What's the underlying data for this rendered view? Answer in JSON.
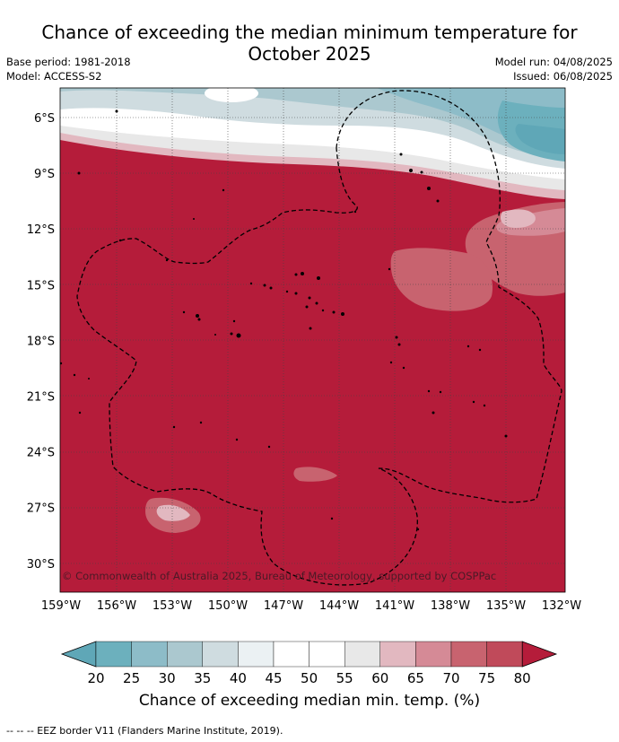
{
  "title_line1": "Chance of exceeding the median minimum temperature for",
  "title_line2": "October 2025",
  "base_period": "Base period: 1981-2018",
  "model": "Model: ACCESS-S2",
  "model_run": "Model run: 04/08/2025",
  "issued": "Issued: 06/08/2025",
  "lat_labels": [
    "6°S",
    "9°S",
    "12°S",
    "15°S",
    "18°S",
    "21°S",
    "24°S",
    "27°S",
    "30°S"
  ],
  "lon_labels": [
    "159°W",
    "156°W",
    "153°W",
    "150°W",
    "147°W",
    "144°W",
    "141°W",
    "138°W",
    "135°W",
    "132°W"
  ],
  "copyright": "© Commonwealth of Australia 2025, Bureau of Meteorology, supported by COSPPac",
  "colorbar": {
    "ticks": [
      "20",
      "25",
      "30",
      "35",
      "40",
      "45",
      "50",
      "55",
      "60",
      "65",
      "70",
      "75",
      "80"
    ],
    "colors": [
      "#5fa7b7",
      "#6cb0bd",
      "#8dbcc8",
      "#abc8cf",
      "#cfdce0",
      "#ebf1f3",
      "#ffffff",
      "#ffffff",
      "#e8e8e8",
      "#e2b8c0",
      "#d58a96",
      "#c8636f",
      "#c04a5a",
      "#b51c3a"
    ],
    "label": "Chance of exceeding median min. temp. (%)"
  },
  "legend_note": "--  --  -- EEZ border V11 (Flanders Marine Institute, 2019)."
}
